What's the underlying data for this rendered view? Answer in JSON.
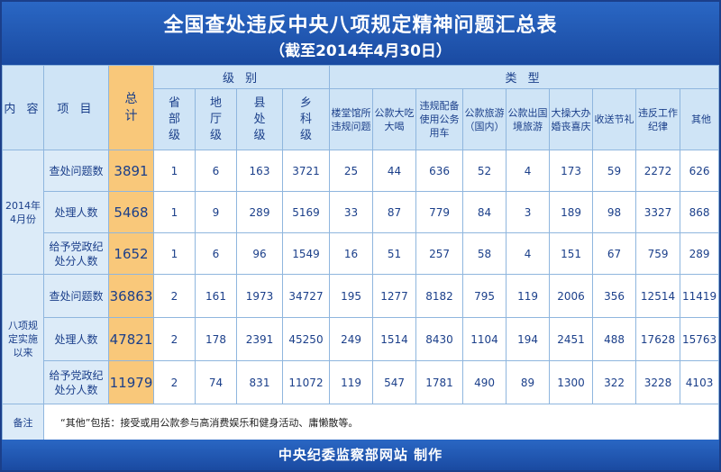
{
  "title": "全国查处违反中央八项规定精神问题汇总表",
  "subtitle": "（截至2014年4月30日）",
  "header": {
    "content": "内 容",
    "item": "项 目",
    "total": "总计",
    "level_group": "级 别",
    "category_group": "类 型",
    "levels": [
      "省部级",
      "地厅级",
      "县处级",
      "乡科级"
    ],
    "categories": [
      "楼堂馆所违规问题",
      "公款大吃大喝",
      "违规配备使用公务用车",
      "公款旅游（国内）",
      "公款出国境旅游",
      "大操大办婚丧喜庆",
      "收送节礼",
      "违反工作纪律",
      "其他"
    ]
  },
  "groups": [
    {
      "label": "2014年4月份",
      "rows": [
        {
          "item": "查处问题数",
          "total": "3891",
          "levels": [
            "1",
            "6",
            "163",
            "3721"
          ],
          "categories": [
            "25",
            "44",
            "636",
            "52",
            "4",
            "173",
            "59",
            "2272",
            "626"
          ]
        },
        {
          "item": "处理人数",
          "total": "5468",
          "levels": [
            "1",
            "9",
            "289",
            "5169"
          ],
          "categories": [
            "33",
            "87",
            "779",
            "84",
            "3",
            "189",
            "98",
            "3327",
            "868"
          ]
        },
        {
          "item": "给予党政纪处分人数",
          "total": "1652",
          "levels": [
            "1",
            "6",
            "96",
            "1549"
          ],
          "categories": [
            "16",
            "51",
            "257",
            "58",
            "4",
            "151",
            "67",
            "759",
            "289"
          ]
        }
      ]
    },
    {
      "label": "八项规定实施以来",
      "rows": [
        {
          "item": "查处问题数",
          "total": "36863",
          "levels": [
            "2",
            "161",
            "1973",
            "34727"
          ],
          "categories": [
            "195",
            "1277",
            "8182",
            "795",
            "119",
            "2006",
            "356",
            "12514",
            "11419"
          ]
        },
        {
          "item": "处理人数",
          "total": "47821",
          "levels": [
            "2",
            "178",
            "2391",
            "45250"
          ],
          "categories": [
            "249",
            "1514",
            "8430",
            "1104",
            "194",
            "2451",
            "488",
            "17628",
            "15763"
          ]
        },
        {
          "item": "给予党政纪处分人数",
          "total": "11979",
          "levels": [
            "2",
            "74",
            "831",
            "11072"
          ],
          "categories": [
            "119",
            "547",
            "1781",
            "490",
            "89",
            "1300",
            "322",
            "3228",
            "4103"
          ]
        }
      ]
    }
  ],
  "note": {
    "label": "备注",
    "text": "“其他”包括：接受或用公款参与高消费娱乐和健身活动、庸懒散等。"
  },
  "footer": "中央纪委监察部网站  制作",
  "colors": {
    "title_bar": "#1c55b0",
    "total_column": "#f9c87a",
    "header_bg": "#cfe4f6",
    "text": "#1b3f8a"
  }
}
